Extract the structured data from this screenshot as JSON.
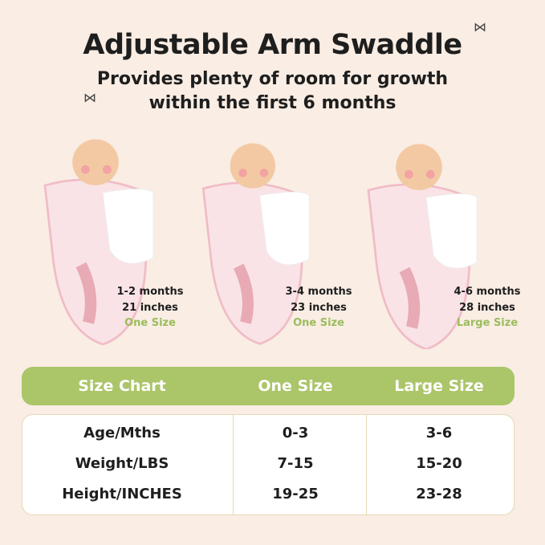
{
  "title": "Adjustable Arm Swaddle",
  "subtitle_lines": [
    "Provides plenty of room for growth",
    "within the first 6 months"
  ],
  "sizes": [
    {
      "age": "1-2 months",
      "length": "21 inches",
      "size": "One Size"
    },
    {
      "age": "3-4 months",
      "length": "23 inches",
      "size": "One Size"
    },
    {
      "age": "4-6 months",
      "length": "28 inches",
      "size": "Large Size"
    }
  ],
  "table": {
    "headers": [
      "Size Chart",
      "One Size",
      "Large Size"
    ],
    "rows": [
      [
        "Age/Mths",
        "0-3",
        "3-6"
      ],
      [
        "Weight/LBS",
        "7-15",
        "15-20"
      ],
      [
        "Height/INCHES",
        "19-25",
        "23-28"
      ]
    ]
  },
  "colors": {
    "background": "#f9ede4",
    "accent_green": "#abc569",
    "caption_green": "#9cbc5c",
    "swaddle_pink": "#f7d9df"
  }
}
